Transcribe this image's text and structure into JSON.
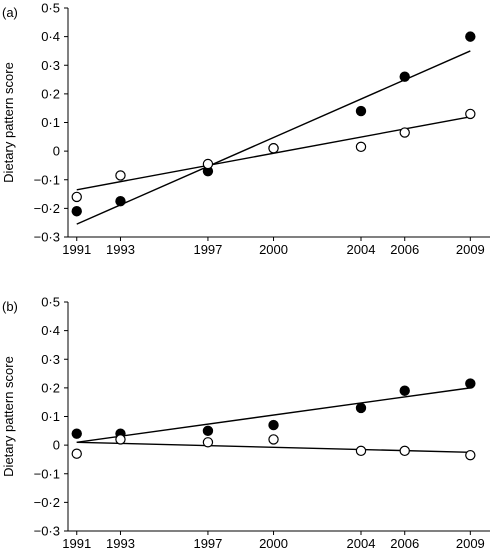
{
  "chart_data": [
    {
      "type": "scatter",
      "panel_label": "(a)",
      "ylabel": "Dietary pattern score",
      "xlabel": "",
      "x": [
        1991,
        1993,
        1997,
        2000,
        2004,
        2006,
        2009
      ],
      "xticks": [
        "1991",
        "1993",
        "1997",
        "2000",
        "2004",
        "2006",
        "2009"
      ],
      "yticks": [
        "0·5",
        "0·4",
        "0·3",
        "0·2",
        "0·1",
        "0",
        "−0·1",
        "−0·2",
        "−0·3"
      ],
      "ylim": [
        -0.3,
        0.5
      ],
      "series": [
        {
          "marker": "filled",
          "values": [
            -0.21,
            -0.175,
            -0.07,
            0.01,
            0.14,
            0.26,
            0.4
          ],
          "fit": [
            [
              1991,
              -0.255
            ],
            [
              2009,
              0.35
            ]
          ]
        },
        {
          "marker": "open",
          "values": [
            -0.16,
            -0.085,
            -0.045,
            0.01,
            0.015,
            0.065,
            0.13
          ],
          "fit": [
            [
              1991,
              -0.135
            ],
            [
              2009,
              0.12
            ]
          ]
        }
      ]
    },
    {
      "type": "scatter",
      "panel_label": "(b)",
      "ylabel": "Dietary pattern score",
      "xlabel": "",
      "x": [
        1991,
        1993,
        1997,
        2000,
        2004,
        2006,
        2009
      ],
      "xticks": [
        "1991",
        "1993",
        "1997",
        "2000",
        "2004",
        "2006",
        "2009"
      ],
      "yticks": [
        "0·5",
        "0·4",
        "0·3",
        "0·2",
        "0·1",
        "0",
        "−0·1",
        "−0·2",
        "−0·3"
      ],
      "ylim": [
        -0.3,
        0.5
      ],
      "series": [
        {
          "marker": "filled",
          "values": [
            0.04,
            0.04,
            0.05,
            0.07,
            0.13,
            0.19,
            0.215
          ],
          "fit": [
            [
              1991,
              0.01
            ],
            [
              2009,
              0.2
            ]
          ]
        },
        {
          "marker": "open",
          "values": [
            -0.03,
            0.02,
            0.01,
            0.02,
            -0.02,
            -0.02,
            -0.035
          ],
          "fit": [
            [
              1991,
              0.01
            ],
            [
              2009,
              -0.025
            ]
          ]
        }
      ]
    }
  ]
}
